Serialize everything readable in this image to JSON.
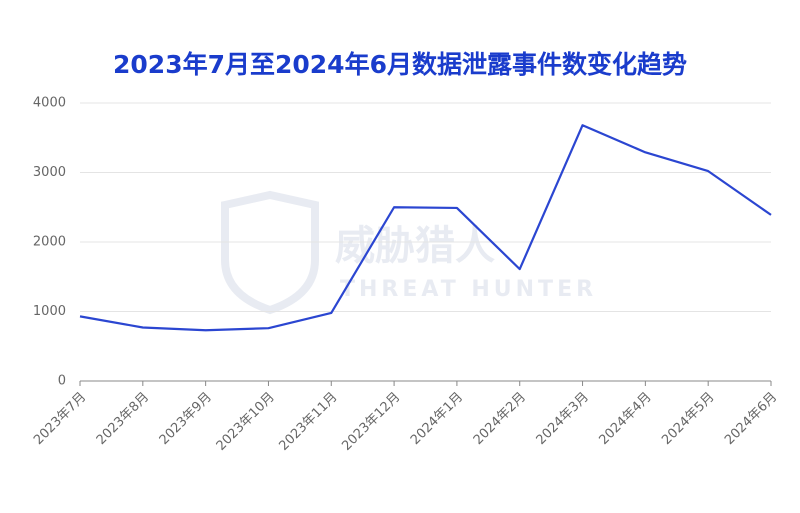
{
  "chart_data": {
    "type": "line",
    "title": "2023年7月至2024年6月数据泄露事件数变化趋势",
    "watermark": [
      "威胁猎人",
      "THREAT HUNTER"
    ],
    "categories": [
      "2023年7月",
      "2023年8月",
      "2023年9月",
      "2023年10月",
      "2023年11月",
      "2023年12月",
      "2024年1月",
      "2024年2月",
      "2024年3月",
      "2024年4月",
      "2024年5月",
      "2024年6月"
    ],
    "series": [
      {
        "color": "#2b46d1",
        "values": [
          930,
          770,
          730,
          760,
          980,
          2500,
          2490,
          1610,
          3680,
          3290,
          3020,
          2390
        ]
      }
    ],
    "ylim": [
      0,
      4000
    ],
    "yticks": [
      0,
      1000,
      2000,
      3000,
      4000
    ],
    "grid": true
  }
}
